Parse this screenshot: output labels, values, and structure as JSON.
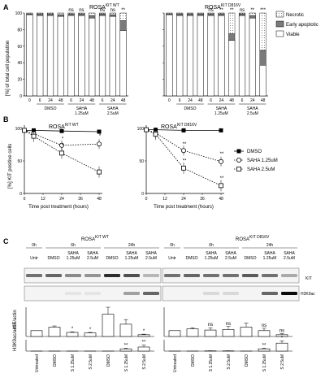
{
  "panels": {
    "A": "A",
    "B": "B",
    "C": "C"
  },
  "panel_a": {
    "ylabel": "[%] of total cell population",
    "left_title": "ROSA",
    "left_title_sup": "KIT WT",
    "right_title": "ROSA",
    "right_title_sup": "KIT D816V",
    "yticks": [
      "0",
      "20",
      "40",
      "60",
      "80",
      "100"
    ],
    "xticks": [
      "0",
      "6",
      "24",
      "48",
      "6",
      "24",
      "48",
      "6",
      "24",
      "48"
    ],
    "groups": [
      "DMSO",
      "SAHA",
      "1.25uM",
      "SAHA",
      "2.5uM"
    ],
    "legend": [
      {
        "label": "Necrotic",
        "color": "#ffffff",
        "pattern": "dots"
      },
      {
        "label": "Early apoptotic",
        "color": "#7a7a7a"
      },
      {
        "label": "Viable",
        "color": "#ffffff"
      }
    ],
    "left_sig": [
      "",
      "",
      "",
      "",
      "ns",
      "ns",
      "",
      "ns",
      "ns",
      "**"
    ],
    "right_sig": [
      "",
      "",
      "",
      "",
      "ns",
      "**",
      "**",
      "ns",
      "**",
      "***"
    ]
  },
  "panel_b": {
    "ylabel": "[%] KIT positive cells",
    "xlabel": "Time post treatment (hours)",
    "left_title": "ROSA",
    "left_title_sup": "KIT WT",
    "right_title": "ROSA",
    "right_title_sup": "KIT D816V",
    "yticks": [
      "0",
      "50",
      "100"
    ],
    "xticks": [
      "0",
      "12",
      "24",
      "36",
      "48"
    ],
    "legend": [
      "DMSO",
      "SAHA 1.25uM",
      "SAHA 2.5uM"
    ],
    "left_sig": {
      "t24_a": "*",
      "t24_b": "*",
      "t48_a": "*"
    },
    "right_sig": {
      "t24_a": "**",
      "t24_b": "**",
      "t48_a": "**",
      "t48_b": "**"
    }
  },
  "panel_c": {
    "left_title": "ROSA",
    "left_title_sup": "KIT WT",
    "right_title": "ROSA",
    "right_title_sup": "KIT D816V",
    "times": [
      "0h",
      "6h",
      "24h"
    ],
    "lanes": [
      "Untr",
      "DMSO",
      "SAHA 1.25uM",
      "SAHA 2.5uM",
      "DMSO",
      "SAHA 1.25uM",
      "SAHA 2.5uM"
    ],
    "blot_labels": [
      "KIT",
      "H3K9ac"
    ],
    "ylabel1_a": "KIT/",
    "ylabel1_b": "actin",
    "ylabel2_a": "H3K9ac/",
    "ylabel2_b": "actin",
    "xcats": [
      "Untreated",
      "DMSO",
      "S 1.25uM",
      "S 2.5uM",
      "DMSO",
      "S 1.25uM",
      "S 2.5uM"
    ],
    "kit_sig_left": [
      "",
      "",
      "*",
      "*",
      "",
      "",
      "*"
    ],
    "kit_sig_right": [
      "",
      "",
      "ns",
      "ns",
      "",
      "ns",
      "ns"
    ],
    "h3_sig_left": [
      "",
      "",
      "",
      "",
      "",
      "**",
      "**"
    ],
    "h3_sig_right": [
      "",
      "",
      "",
      "",
      "",
      "**",
      "*"
    ]
  },
  "chart_data": [
    {
      "type": "bar",
      "title": "ROSA KIT WT",
      "ylabel": "[%] of total cell population",
      "categories": [
        "0",
        "DMSO 6",
        "DMSO 24",
        "DMSO 48",
        "SAHA 1.25uM 6",
        "SAHA 1.25uM 24",
        "SAHA 1.25uM 48",
        "SAHA 2.5uM 6",
        "SAHA 2.5uM 24",
        "SAHA 2.5uM 48"
      ],
      "series": [
        {
          "name": "Viable",
          "values": [
            98,
            97,
            97,
            96,
            97,
            97,
            94,
            97,
            96,
            79
          ]
        },
        {
          "name": "Early apoptotic",
          "values": [
            1,
            2,
            2,
            2,
            2,
            2,
            3,
            2,
            2,
            12
          ]
        },
        {
          "name": "Necrotic",
          "values": [
            1,
            1,
            1,
            2,
            1,
            1,
            3,
            1,
            2,
            9
          ]
        }
      ],
      "ylim": [
        0,
        100
      ]
    },
    {
      "type": "bar",
      "title": "ROSA KIT D816V",
      "categories": [
        "0",
        "DMSO 6",
        "DMSO 24",
        "DMSO 48",
        "SAHA 1.25uM 6",
        "SAHA 1.25uM 24",
        "SAHA 1.25uM 48",
        "SAHA 2.5uM 6",
        "SAHA 2.5uM 24",
        "SAHA 2.5uM 48"
      ],
      "series": [
        {
          "name": "Viable",
          "values": [
            98,
            97,
            97,
            97,
            97,
            97,
            67,
            97,
            94,
            37
          ]
        },
        {
          "name": "Early apoptotic",
          "values": [
            1,
            2,
            2,
            2,
            2,
            2,
            8,
            2,
            3,
            18
          ]
        },
        {
          "name": "Necrotic",
          "values": [
            1,
            1,
            1,
            1,
            1,
            1,
            25,
            1,
            3,
            45
          ]
        }
      ],
      "ylim": [
        0,
        100
      ]
    },
    {
      "type": "line",
      "title": "ROSA KIT WT",
      "xlabel": "Time post treatment (hours)",
      "ylabel": "[%] KIT positive cells",
      "x": [
        0,
        6,
        24,
        48
      ],
      "series": [
        {
          "name": "DMSO",
          "values": [
            97,
            97,
            96,
            95
          ]
        },
        {
          "name": "SAHA 1.25uM",
          "values": [
            97,
            92,
            74,
            76
          ]
        },
        {
          "name": "SAHA 2.5uM",
          "values": [
            97,
            88,
            62,
            33
          ]
        }
      ],
      "ylim": [
        0,
        100
      ]
    },
    {
      "type": "line",
      "title": "ROSA KIT D816V",
      "xlabel": "Time post treatment (hours)",
      "x": [
        0,
        6,
        24,
        48
      ],
      "series": [
        {
          "name": "DMSO",
          "values": [
            98,
            98,
            97,
            97
          ]
        },
        {
          "name": "SAHA 1.25uM",
          "values": [
            98,
            93,
            66,
            49
          ]
        },
        {
          "name": "SAHA 2.5uM",
          "values": [
            98,
            91,
            39,
            12
          ]
        }
      ],
      "ylim": [
        0,
        100
      ]
    },
    {
      "type": "bar",
      "ylabel": "KIT/actin",
      "categories": [
        "Untreated",
        "DMSO",
        "S 1.25uM",
        "S 2.5uM",
        "DMSO",
        "S 1.25uM",
        "S 2.5uM"
      ],
      "series": [
        {
          "values": [
            1.0,
            1.6,
            0.7,
            0.6,
            3.8,
            2.1,
            0.3
          ],
          "errors": [
            0,
            0.2,
            0.1,
            0.1,
            1.2,
            0.8,
            0.1
          ]
        },
        {
          "values": [
            1.0,
            1.3,
            1.1,
            1.2,
            1.6,
            1.0,
            0.3
          ],
          "errors": [
            0,
            0.2,
            0.4,
            0.5,
            0.7,
            0.4,
            0.2
          ]
        }
      ],
      "ylim": [
        0,
        5
      ]
    },
    {
      "type": "bar",
      "ylabel": "H3K9ac/actin",
      "categories": [
        "Untreated",
        "DMSO",
        "S 1.25uM",
        "S 2.5uM",
        "DMSO",
        "S 1.25uM",
        "S 2.5uM"
      ],
      "series": [
        {
          "values": [
            0,
            0,
            0,
            0,
            0,
            1.0,
            1.8
          ],
          "errors": [
            0,
            0,
            0,
            0,
            0,
            0.3,
            0.8
          ]
        },
        {
          "values": [
            0,
            0,
            0.1,
            0.1,
            0,
            1.0,
            3.5
          ],
          "errors": [
            0,
            0,
            0.05,
            0.05,
            0,
            0.3,
            1.0
          ]
        }
      ],
      "ylim": [
        0,
        5
      ]
    }
  ]
}
